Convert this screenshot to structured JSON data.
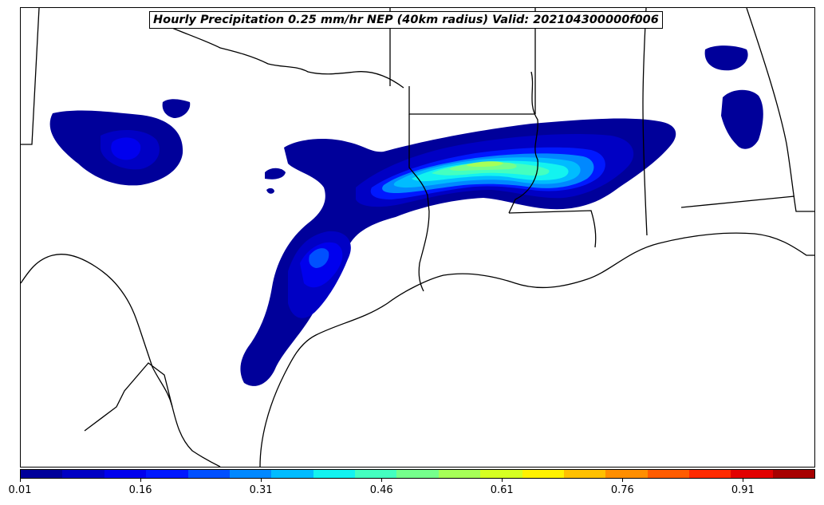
{
  "title": "Hourly Precipitation 0.25 mm/hr NEP (40km radius) Valid: 202104300000f006",
  "colorbar": {
    "colors": [
      "#00009a",
      "#0000c4",
      "#0000ee",
      "#0018ff",
      "#0050ff",
      "#0088ff",
      "#00bcff",
      "#13f3f0",
      "#44ffc0",
      "#75ff8c",
      "#a6ff58",
      "#d6ff22",
      "#fff200",
      "#ffc000",
      "#ff8e00",
      "#ff5c00",
      "#ff2a00",
      "#e20000",
      "#a70000"
    ],
    "tick_labels": [
      "0.01",
      "0.16",
      "0.31",
      "0.46",
      "0.61",
      "0.76",
      "0.91"
    ],
    "tick_values": [
      0.01,
      0.16,
      0.31,
      0.46,
      0.61,
      0.76,
      0.91
    ],
    "min": 0.01,
    "max": 1.0
  }
}
